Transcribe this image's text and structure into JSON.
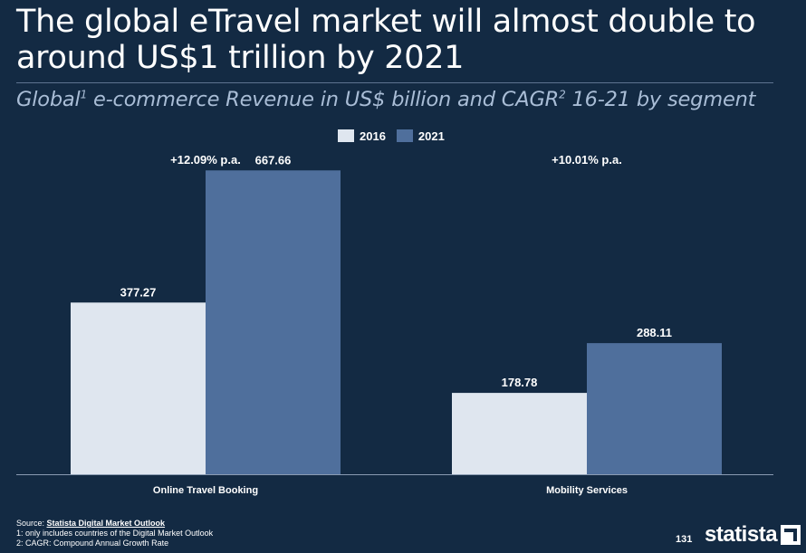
{
  "header": {
    "title": "The global eTravel market will almost double to around US$1 trillion by 2021",
    "subtitle_main": "Global",
    "subtitle_sup1": "1",
    "subtitle_mid": " e-commerce Revenue in US$ billion and CAGR",
    "subtitle_sup2": "2",
    "subtitle_end": " 16-21 by segment"
  },
  "legend": {
    "items": [
      {
        "label": "2016",
        "color": "#dfe6ef"
      },
      {
        "label": "2021",
        "color": "#4f6f9c"
      }
    ]
  },
  "chart_data": {
    "type": "bar",
    "title": "Global e-commerce Revenue in US$ billion and CAGR 16-21 by segment",
    "categories": [
      "Online Travel Booking",
      "Mobility Services"
    ],
    "series": [
      {
        "name": "2016",
        "values": [
          377.27,
          178.78
        ],
        "labels": [
          "377.27",
          "178.78"
        ],
        "color": "#dfe6ef"
      },
      {
        "name": "2021",
        "values": [
          667.66,
          288.11
        ],
        "labels": [
          "667.66",
          "288.11"
        ],
        "color": "#4f6f9c"
      }
    ],
    "cagr_labels": [
      "+12.09% p.a.",
      "+10.01% p.a."
    ],
    "xlabel": "",
    "ylabel": "US$ billion",
    "ylim": [
      0,
      700
    ],
    "grid": false,
    "legend_position": "top-center"
  },
  "footer": {
    "source_prefix": "Source: ",
    "source_link": "Statista Digital Market Outlook",
    "note1": "1: only includes countries of the Digital Market Outlook",
    "note2": "2: CAGR: Compound Annual Growth Rate",
    "page_number": "131",
    "brand": "statista"
  }
}
